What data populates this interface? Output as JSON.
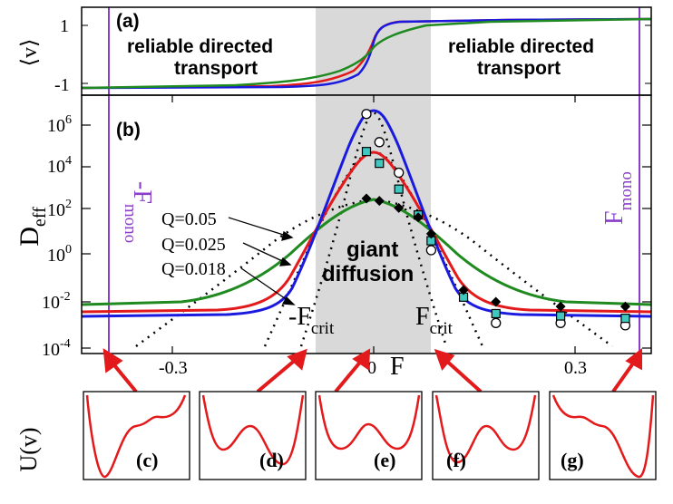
{
  "panel_a": {
    "label": "(a)",
    "ylabel": "⟨v⟩",
    "yticks": [
      "1",
      "-1"
    ],
    "left_text_1": "reliable directed",
    "left_text_2": "transport",
    "right_text_1": "reliable directed",
    "right_text_2": "transport"
  },
  "panel_b": {
    "label": "(b)",
    "ylabel_main": "D",
    "ylabel_sub": "eff",
    "ytick_exponents": [
      "6",
      "4",
      "2",
      "0",
      "-2",
      "-4"
    ],
    "ytick_base": "10",
    "xticks": [
      "-0.3",
      "0",
      "0.3"
    ],
    "xlabel": "F",
    "giant_1": "giant",
    "giant_2": "diffusion",
    "fcrit_neg_main": "-F",
    "fcrit_pos_main": "F",
    "crit_sub": "crit",
    "fmono_neg_main": "-F",
    "fmono_pos_main": "F",
    "mono_sub": "mono"
  },
  "potentials": {
    "ylabel": "U(v)",
    "labels": [
      "(c)",
      "(d)",
      "(e)",
      "(f)",
      "(g)"
    ]
  },
  "colors": {
    "red": "#e31a1c",
    "green": "#1f8a1f",
    "blue": "#1a1adf",
    "purple": "#8a3fc8",
    "shade": "#d9d9d9",
    "marker_fill": "#40c8c0"
  },
  "chart_data": {
    "type": "line",
    "panels": [
      {
        "id": "a",
        "x_range": [
          -0.5,
          0.5
        ],
        "y_range": [
          -1.2,
          1.2
        ],
        "yticks": [
          1,
          -1
        ],
        "shaded_x": [
          -0.095,
          0.095
        ],
        "vlines_x": [
          -0.4,
          0.4
        ],
        "series": [
          {
            "color": "red",
            "x": [
              -0.5,
              -0.2,
              -0.1,
              -0.05,
              -0.02,
              0,
              0.02,
              0.05,
              0.1,
              0.2,
              0.5
            ],
            "y": [
              -1.0,
              -0.97,
              -0.9,
              -0.7,
              -0.3,
              0,
              0.3,
              0.7,
              0.9,
              0.97,
              1.0
            ]
          },
          {
            "color": "blue",
            "x": [
              -0.5,
              -0.2,
              -0.1,
              -0.05,
              -0.02,
              0,
              0.02,
              0.05,
              0.1,
              0.2,
              0.5
            ],
            "y": [
              -1.0,
              -0.98,
              -0.95,
              -0.8,
              -0.35,
              0,
              0.35,
              0.8,
              0.95,
              0.98,
              1.0
            ]
          },
          {
            "color": "green",
            "x": [
              -0.5,
              -0.2,
              -0.1,
              -0.05,
              -0.02,
              0,
              0.02,
              0.05,
              0.1,
              0.2,
              0.5
            ],
            "y": [
              -1.0,
              -0.95,
              -0.8,
              -0.5,
              -0.2,
              0,
              0.2,
              0.5,
              0.8,
              0.95,
              1.0
            ]
          }
        ]
      },
      {
        "id": "b",
        "x_range": [
          -0.44,
          0.44
        ],
        "y_scale": "log",
        "y_range_log10": [
          -4,
          7
        ],
        "shaded_x": [
          -0.095,
          0.095
        ],
        "vlines_x": [
          -0.4,
          0.4
        ],
        "series": [
          {
            "name": "Q=0.05",
            "color": "green",
            "x": [
              -0.44,
              -0.4,
              -0.3,
              -0.2,
              -0.15,
              -0.1,
              -0.05,
              0,
              0.05,
              0.1,
              0.15,
              0.2,
              0.3,
              0.4,
              0.44
            ],
            "y_log10": [
              -2.1,
              -2.1,
              -2.0,
              -1.3,
              -0.4,
              0.8,
              2.1,
              2.6,
              2.1,
              0.8,
              -0.4,
              -1.3,
              -2.0,
              -2.1,
              -2.1
            ]
          },
          {
            "name": "Q=0.025",
            "color": "red",
            "x": [
              -0.44,
              -0.4,
              -0.3,
              -0.2,
              -0.15,
              -0.1,
              -0.05,
              0,
              0.05,
              0.1,
              0.15,
              0.2,
              0.3,
              0.4,
              0.44
            ],
            "y_log10": [
              -2.5,
              -2.5,
              -2.4,
              -2.2,
              -1.8,
              0.6,
              3.3,
              4.7,
              3.3,
              0.6,
              -1.8,
              -2.2,
              -2.4,
              -2.5,
              -2.5
            ]
          },
          {
            "name": "Q=0.018",
            "color": "blue",
            "x": [
              -0.44,
              -0.4,
              -0.3,
              -0.2,
              -0.15,
              -0.1,
              -0.05,
              0,
              0.05,
              0.1,
              0.15,
              0.2,
              0.3,
              0.4,
              0.44
            ],
            "y_log10": [
              -2.7,
              -2.7,
              -2.6,
              -2.4,
              -2.0,
              0.4,
              4.2,
              6.3,
              4.2,
              0.4,
              -2.0,
              -2.4,
              -2.6,
              -2.7,
              -2.7
            ]
          }
        ],
        "dotted_series": [
          {
            "x": [
              -0.4,
              -0.3,
              -0.2,
              -0.1,
              0,
              0.1,
              0.2,
              0.3,
              0.4
            ],
            "y_log10": [
              -4,
              -3.4,
              -1.2,
              1.0,
              2.6,
              1.0,
              -1.2,
              -3.4,
              -4
            ]
          },
          {
            "x": [
              -0.25,
              -0.2,
              -0.1,
              0,
              0.1,
              0.2,
              0.25
            ],
            "y_log10": [
              -4,
              -3.2,
              0.6,
              4.7,
              0.6,
              -3.2,
              -4
            ]
          },
          {
            "x": [
              -0.2,
              -0.1,
              0,
              0.1,
              0.2
            ],
            "y_log10": [
              -4,
              0.4,
              6.3,
              0.4,
              -4
            ]
          }
        ],
        "markers": [
          {
            "shape": "circle",
            "x": [
              0,
              0.02,
              0.05,
              0.1,
              0.2,
              0.3,
              0.4
            ],
            "y_log10": [
              6.2,
              5.0,
              3.7,
              0.4,
              -2.7,
              -2.7,
              -2.8
            ]
          },
          {
            "shape": "square",
            "x": [
              0,
              0.02,
              0.05,
              0.08,
              0.1,
              0.15,
              0.2,
              0.3,
              0.4
            ],
            "y_log10": [
              4.6,
              4.1,
              3.0,
              1.9,
              0.8,
              -1.6,
              -2.3,
              -2.4,
              -2.5
            ]
          },
          {
            "shape": "diamond",
            "x": [
              0,
              0.02,
              0.05,
              0.08,
              0.1,
              0.15,
              0.2,
              0.3,
              0.4
            ],
            "y_log10": [
              2.6,
              2.5,
              2.2,
              1.8,
              1.1,
              -1.3,
              -1.8,
              -2.0,
              -2.0
            ]
          }
        ]
      }
    ]
  }
}
